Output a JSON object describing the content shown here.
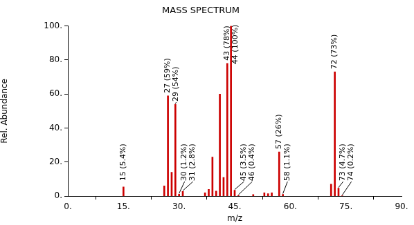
{
  "chart_data": {
    "type": "bar",
    "title": "MASS SPECTRUM",
    "xlabel": "m/z",
    "ylabel": "Rel. Abundance",
    "x": [
      15,
      26,
      27,
      28,
      29,
      30,
      31,
      37,
      38,
      39,
      40,
      41,
      42,
      43,
      44,
      45,
      46,
      50,
      53,
      54,
      55,
      57,
      58,
      71,
      72,
      73,
      74
    ],
    "values": [
      5.4,
      6,
      59,
      14,
      54,
      1.2,
      2.8,
      2,
      4,
      23,
      3,
      60,
      11,
      78,
      100,
      3.5,
      0.4,
      1,
      2,
      1.5,
      2,
      26,
      1.1,
      7,
      73,
      4.7,
      0.2
    ],
    "value_labels": [
      "15 (5.4%)",
      null,
      "27 (59%)",
      null,
      "29 (54%)",
      "30 (1.2%)",
      "31 (2.8%)",
      null,
      null,
      null,
      null,
      null,
      null,
      "43 (78%)",
      "44 (100%)",
      "45 (3.5%)",
      "46 (0.4%)",
      null,
      null,
      null,
      null,
      "57 (26%)",
      "58 (1.1%)",
      null,
      "72 (73%)",
      "73 (4.7%)",
      "74 (0.2%)"
    ],
    "color": "#cc0000",
    "xlim": [
      0,
      90
    ],
    "xticks": [
      {
        "value": 0,
        "label": "0."
      },
      {
        "value": 15,
        "label": "15."
      },
      {
        "value": 30,
        "label": "30."
      },
      {
        "value": 45,
        "label": "45."
      },
      {
        "value": 60,
        "label": "60."
      },
      {
        "value": 75,
        "label": "75."
      },
      {
        "value": 90,
        "label": "90."
      }
    ],
    "ylim": [
      0,
      100
    ],
    "yticks": [
      {
        "value": 0,
        "label": "0."
      },
      {
        "value": 20,
        "label": "20."
      },
      {
        "value": 40,
        "label": "40."
      },
      {
        "value": 60,
        "label": "60."
      },
      {
        "value": 80,
        "label": "80."
      },
      {
        "value": 100,
        "label": "100."
      }
    ],
    "grid": false,
    "data_labels": true
  }
}
